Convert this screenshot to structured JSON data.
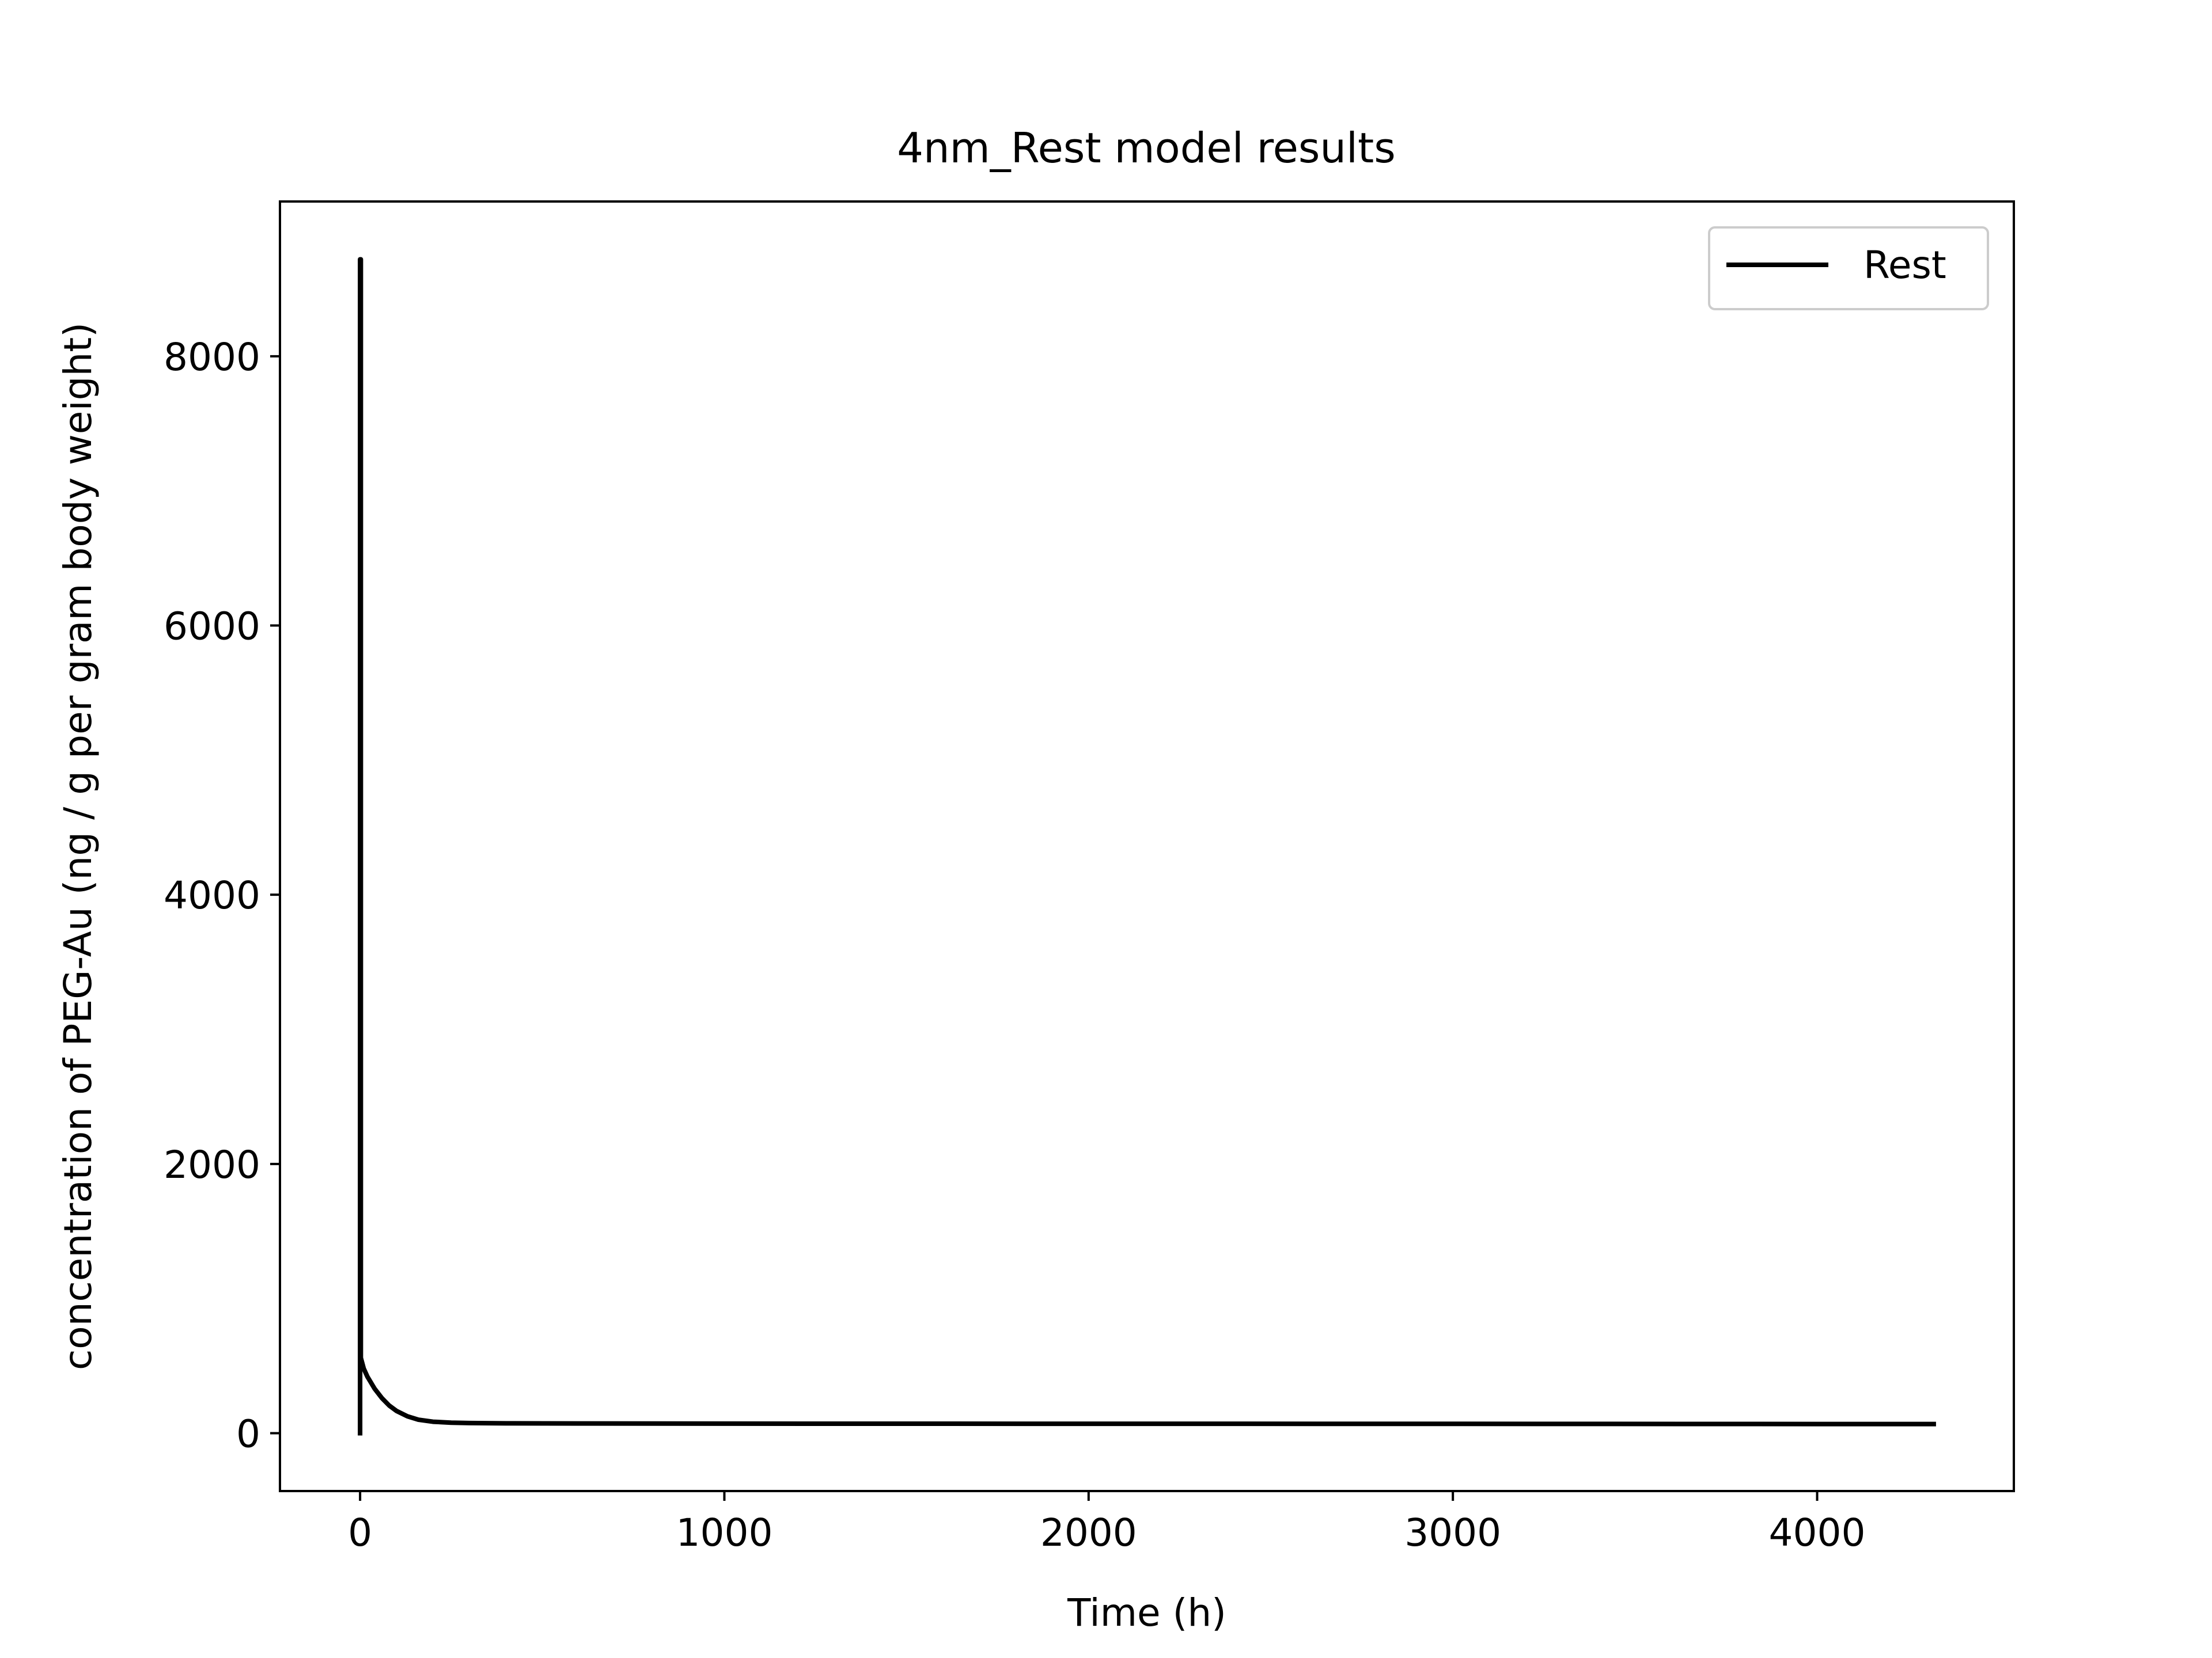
{
  "chart_data": {
    "type": "line",
    "title": "4nm_Rest model results",
    "xlabel": "Time (h)",
    "ylabel": "concentration of PEG-Au (ng / g per gram body weight)",
    "xlim": [
      -220,
      4540
    ],
    "ylim": [
      -430,
      9150
    ],
    "xticks": [
      0,
      1000,
      2000,
      3000,
      4000
    ],
    "yticks": [
      0,
      2000,
      4000,
      6000,
      8000
    ],
    "xtick_labels": [
      "0",
      "1000",
      "2000",
      "3000",
      "4000"
    ],
    "ytick_labels": [
      "0",
      "2000",
      "4000",
      "6000",
      "8000"
    ],
    "grid": false,
    "legend_position": "top-right",
    "series": [
      {
        "name": "Rest",
        "color": "#000000",
        "x": [
          0,
          0,
          2,
          2,
          10,
          20,
          40,
          60,
          80,
          100,
          130,
          160,
          200,
          250,
          300,
          400,
          600,
          1000,
          2000,
          3000,
          4000,
          4320
        ],
        "y": [
          0,
          8720,
          8720,
          560,
          480,
          420,
          330,
          260,
          205,
          165,
          125,
          100,
          85,
          78,
          75,
          73,
          72,
          71,
          70,
          69,
          68,
          68
        ]
      }
    ]
  }
}
